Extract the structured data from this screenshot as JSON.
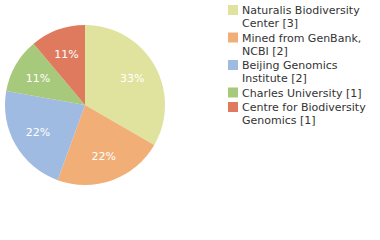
{
  "chart_data": {
    "type": "pie",
    "categories": [
      "Naturalis Biodiversity Center [3]",
      "Mined from GenBank, NCBI [2]",
      "Beijing Genomics Institute [2]",
      "Charles University [1]",
      "Centre for Biodiversity Genomics [1]"
    ],
    "values": [
      33,
      22,
      22,
      11,
      11
    ],
    "value_labels": [
      "33%",
      "22%",
      "22%",
      "11%",
      "11%"
    ],
    "colors": [
      "#dfe39d",
      "#f1af77",
      "#9fbbe1",
      "#a7c97c",
      "#df7a5e"
    ],
    "data_labels": true,
    "legend": "top-right"
  }
}
